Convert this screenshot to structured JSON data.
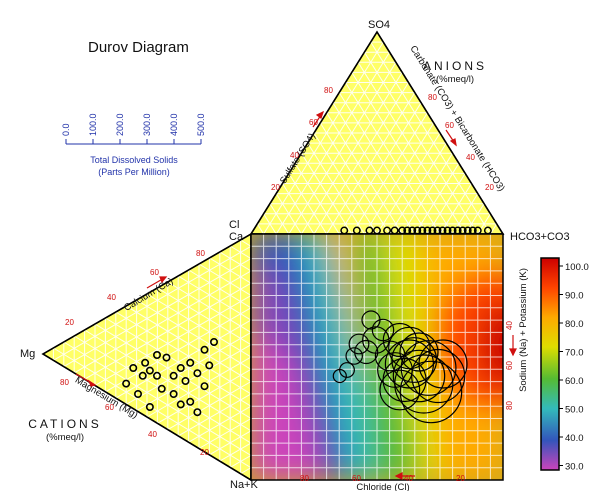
{
  "chart_data": {
    "type": "scatter",
    "title": "Durov Diagram",
    "apex_labels": {
      "top": "SO4",
      "cl": "Cl",
      "ca": "Ca",
      "hco3": "HCO3+CO3",
      "mg": "Mg",
      "nak": "Na+K"
    },
    "anions": {
      "heading": "ANIONS",
      "unit": "(%meq/l)",
      "sulfate_axis": "Sulfate (SO4)",
      "carbonate_axis": "Carbonate (CO3) + Bicarbonate (HCO3)",
      "ticks": [
        "20",
        "40",
        "60",
        "80"
      ]
    },
    "cations": {
      "heading": "CATIONS",
      "unit": "(%meq/l)",
      "calcium_axis": "Calcium (Ca)",
      "magnesium_axis": "Magnesium (Mg)",
      "ticks": [
        "20",
        "40",
        "60",
        "80"
      ]
    },
    "square": {
      "x_axis": "Chloride (Cl)",
      "y_axis": "Sodium (Na) + Potassium (K)",
      "x_ticks": [
        "80",
        "60",
        "40",
        "20"
      ],
      "y_ticks": [
        "40",
        "60",
        "80"
      ]
    },
    "tds_scale": {
      "ticks": [
        "0.0",
        "100.0",
        "200.0",
        "300.0",
        "400.0",
        "500.0"
      ],
      "label_line1": "Total Dissolved Solids",
      "label_line2": "(Parts Per Million)"
    },
    "colorbar": {
      "ticks": [
        "100.0",
        "90.0",
        "80.0",
        "70.0",
        "60.0",
        "50.0",
        "40.0",
        "30.0"
      ],
      "colors": [
        "#cc0000",
        "#ff4400",
        "#ffaa00",
        "#dddd00",
        "#55bb33",
        "#33bbbb",
        "#3355bb",
        "#cc44bb"
      ]
    },
    "anion_points": [
      [
        37,
        0.5
      ],
      [
        42,
        0.5
      ],
      [
        47,
        0.5
      ],
      [
        50,
        0.5
      ],
      [
        54,
        0.5
      ],
      [
        57,
        0.5
      ],
      [
        60,
        0.5
      ],
      [
        62,
        0.5
      ],
      [
        64,
        0.5
      ],
      [
        66,
        0.5
      ],
      [
        68,
        0.5
      ],
      [
        70,
        0.5
      ],
      [
        72,
        0.5
      ],
      [
        74,
        0.5
      ],
      [
        76,
        0.5
      ],
      [
        78,
        0.5
      ],
      [
        80,
        0.5
      ],
      [
        82,
        0.5
      ],
      [
        84,
        0.5
      ],
      [
        86,
        0.5
      ],
      [
        88,
        0.5
      ],
      [
        90,
        0.5
      ],
      [
        94,
        0.5
      ]
    ],
    "cation_points": [
      [
        55,
        36
      ],
      [
        58,
        30
      ],
      [
        60,
        40
      ],
      [
        62,
        33
      ],
      [
        63,
        28
      ],
      [
        65,
        31
      ],
      [
        65,
        45
      ],
      [
        68,
        33
      ],
      [
        68,
        25
      ],
      [
        70,
        38
      ],
      [
        72,
        26
      ],
      [
        75,
        33
      ],
      [
        75,
        40
      ],
      [
        78,
        44
      ],
      [
        78,
        30
      ],
      [
        80,
        35
      ],
      [
        82,
        28
      ],
      [
        82,
        43
      ],
      [
        85,
        32
      ],
      [
        85,
        47
      ],
      [
        88,
        37
      ],
      [
        88,
        23
      ],
      [
        90,
        29
      ],
      [
        92,
        20
      ]
    ],
    "square_points": [
      {
        "cl": 37,
        "na": 52,
        "tds": 30
      },
      {
        "cl": 40,
        "na": 55,
        "tds": 40
      },
      {
        "cl": 43,
        "na": 62,
        "tds": 50
      },
      {
        "cl": 45,
        "na": 68,
        "tds": 70
      },
      {
        "cl": 48,
        "na": 64,
        "tds": 90
      },
      {
        "cl": 52,
        "na": 70,
        "tds": 110
      },
      {
        "cl": 55,
        "na": 75,
        "tds": 80
      },
      {
        "cl": 50,
        "na": 80,
        "tds": 60
      },
      {
        "cl": 58,
        "na": 62,
        "tds": 130
      },
      {
        "cl": 60,
        "na": 55,
        "tds": 160
      },
      {
        "cl": 62,
        "na": 45,
        "tds": 190
      },
      {
        "cl": 64,
        "na": 50,
        "tds": 210
      },
      {
        "cl": 66,
        "na": 58,
        "tds": 240
      },
      {
        "cl": 68,
        "na": 60,
        "tds": 220
      },
      {
        "cl": 70,
        "na": 52,
        "tds": 260
      },
      {
        "cl": 72,
        "na": 48,
        "tds": 300
      },
      {
        "cl": 74,
        "na": 56,
        "tds": 280
      },
      {
        "cl": 75,
        "na": 44,
        "tds": 320
      },
      {
        "cl": 78,
        "na": 52,
        "tds": 270
      },
      {
        "cl": 80,
        "na": 58,
        "tds": 240
      },
      {
        "cl": 66,
        "na": 66,
        "tds": 200
      },
      {
        "cl": 70,
        "na": 64,
        "tds": 180
      },
      {
        "cl": 62,
        "na": 70,
        "tds": 150
      }
    ]
  }
}
